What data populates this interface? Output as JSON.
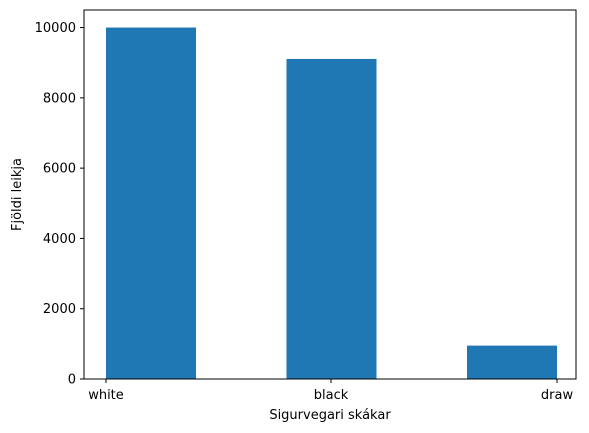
{
  "chart_data": {
    "type": "bar",
    "categories": [
      "white",
      "black",
      "draw"
    ],
    "values": [
      10001,
      9107,
      950
    ],
    "xlabel": "Sigurvegari skákar",
    "ylabel": "Fjöldi leikja",
    "ylim": [
      0,
      10500
    ],
    "yticks": [
      0,
      2000,
      4000,
      6000,
      8000,
      10000
    ],
    "bar_color": "#1f77b4",
    "grid": false,
    "legend": "none"
  }
}
